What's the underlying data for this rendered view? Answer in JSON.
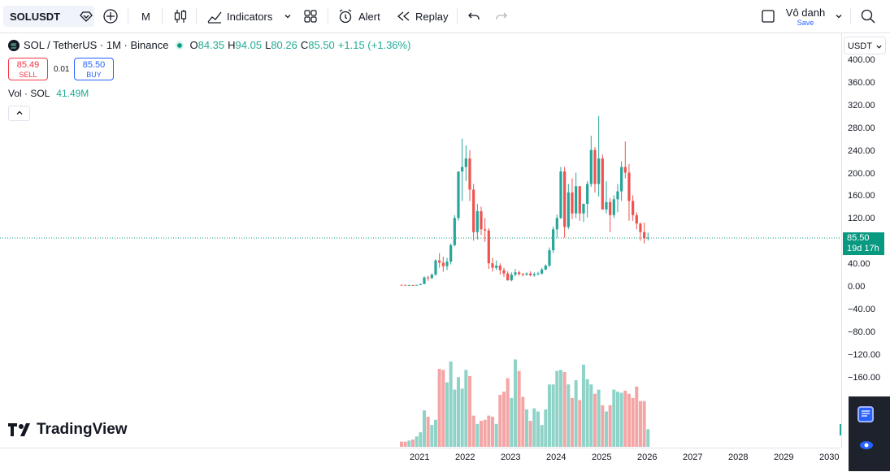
{
  "topbar": {
    "symbol": "SOLUSDT",
    "interval": "M",
    "indicators_label": "Indicators",
    "alert_label": "Alert",
    "replay_label": "Replay",
    "layout_name": "Vô danh",
    "save_label": "Save"
  },
  "legend": {
    "title": "SOL / TetherUS · 1M · Binance",
    "o_label": "O",
    "o_value": "84.35",
    "h_label": "H",
    "h_value": "94.05",
    "l_label": "L",
    "l_value": "80.26",
    "c_label": "C",
    "c_value": "85.50",
    "change": "+1.15 (+1.36%)"
  },
  "trade": {
    "sell_price": "85.49",
    "sell_label": "SELL",
    "spread": "0.01",
    "buy_price": "85.50",
    "buy_label": "BUY"
  },
  "volume": {
    "label": "Vol · SOL",
    "value": "41.49M"
  },
  "price_axis": {
    "currency": "USDT",
    "labels": [
      "400.00",
      "360.00",
      "320.00",
      "280.00",
      "240.00",
      "200.00",
      "160.00",
      "120.00",
      "80.00",
      "40.00",
      "0.00",
      "−40.00",
      "−80.00",
      "−120.00",
      "−160.00"
    ],
    "last_price": "85.50",
    "countdown": "19d 17h"
  },
  "time_axis": [
    "2021",
    "2022",
    "2023",
    "2024",
    "2025",
    "2026",
    "2027",
    "2028",
    "2029",
    "2030"
  ],
  "brand": "TradingView",
  "colors": {
    "up": "#26a69a",
    "down": "#ef5350",
    "vol_up": "#8fd3c8",
    "vol_down": "#f4a5a5",
    "last": "#089981"
  },
  "chart_data": {
    "type": "candlestick",
    "interval": "1M",
    "y_range": [
      -190,
      400
    ],
    "candles_ohlc": [
      [
        2.0,
        2.2,
        1.6,
        1.8
      ],
      [
        1.8,
        2.0,
        1.4,
        1.5
      ],
      [
        1.5,
        2.0,
        1.3,
        1.6
      ],
      [
        1.6,
        1.7,
        1.2,
        1.4
      ],
      [
        1.4,
        2.0,
        1.1,
        1.8
      ],
      [
        1.8,
        4.0,
        1.5,
        3.5
      ],
      [
        3.5,
        17,
        3.0,
        15
      ],
      [
        15,
        18,
        9,
        14
      ],
      [
        14,
        22,
        12,
        20
      ],
      [
        20,
        47,
        18,
        45
      ],
      [
        45,
        58,
        32,
        41
      ],
      [
        41,
        52,
        25,
        35
      ],
      [
        35,
        50,
        28,
        43
      ],
      [
        43,
        75,
        38,
        72
      ],
      [
        72,
        125,
        70,
        120
      ],
      [
        120,
        200,
        115,
        202
      ],
      [
        202,
        260,
        150,
        210
      ],
      [
        210,
        248,
        185,
        225
      ],
      [
        225,
        240,
        150,
        170
      ],
      [
        170,
        180,
        80,
        95
      ],
      [
        95,
        145,
        82,
        132
      ],
      [
        132,
        140,
        90,
        100
      ],
      [
        100,
        120,
        78,
        98
      ],
      [
        98,
        102,
        30,
        40
      ],
      [
        40,
        50,
        25,
        32
      ],
      [
        32,
        45,
        28,
        36
      ],
      [
        36,
        40,
        20,
        28
      ],
      [
        28,
        32,
        16,
        22
      ],
      [
        22,
        26,
        9,
        10
      ],
      [
        10,
        24,
        8,
        20
      ],
      [
        20,
        30,
        17,
        24
      ],
      [
        24,
        27,
        18,
        21
      ],
      [
        21,
        23,
        17,
        20
      ],
      [
        20,
        24,
        18,
        22
      ],
      [
        22,
        26,
        17,
        19
      ],
      [
        19,
        24,
        16,
        21
      ],
      [
        21,
        25,
        19,
        22
      ],
      [
        22,
        32,
        20,
        29
      ],
      [
        29,
        38,
        28,
        36
      ],
      [
        36,
        68,
        33,
        63
      ],
      [
        63,
        105,
        58,
        100
      ],
      [
        100,
        126,
        85,
        120
      ],
      [
        120,
        210,
        118,
        202
      ],
      [
        202,
        210,
        85,
        104
      ],
      [
        104,
        180,
        100,
        165
      ],
      [
        165,
        190,
        118,
        128
      ],
      [
        128,
        200,
        120,
        176
      ],
      [
        176,
        165,
        115,
        128
      ],
      [
        128,
        140,
        113,
        145
      ],
      [
        145,
        185,
        121,
        180
      ],
      [
        180,
        265,
        175,
        240
      ],
      [
        240,
        245,
        165,
        180
      ],
      [
        180,
        300,
        158,
        225
      ],
      [
        225,
        232,
        160,
        135
      ],
      [
        135,
        185,
        128,
        148
      ],
      [
        148,
        155,
        95,
        125
      ],
      [
        125,
        160,
        120,
        153
      ],
      [
        153,
        180,
        130,
        167
      ],
      [
        167,
        220,
        150,
        210
      ],
      [
        210,
        255,
        190,
        200
      ],
      [
        200,
        215,
        115,
        150
      ],
      [
        150,
        160,
        115,
        125
      ],
      [
        125,
        130,
        100,
        110
      ],
      [
        110,
        112,
        80,
        95
      ],
      [
        95,
        112,
        75,
        84
      ],
      [
        84.35,
        94.05,
        80.26,
        85.5
      ]
    ],
    "volume_relative": [
      0.05,
      0.05,
      0.06,
      0.07,
      0.1,
      0.14,
      0.35,
      0.29,
      0.21,
      0.26,
      0.75,
      0.74,
      0.62,
      0.82,
      0.55,
      0.67,
      0.56,
      0.74,
      0.68,
      0.3,
      0.22,
      0.25,
      0.26,
      0.3,
      0.29,
      0.22,
      0.5,
      0.53,
      0.66,
      0.47,
      0.84,
      0.73,
      0.48,
      0.36,
      0.25,
      0.37,
      0.34,
      0.21,
      0.36,
      0.6,
      0.6,
      0.73,
      0.74,
      0.72,
      0.6,
      0.47,
      0.64,
      0.45,
      0.79,
      0.65,
      0.6,
      0.51,
      0.55,
      0.4,
      0.34,
      0.4,
      0.55,
      0.53,
      0.52,
      0.54,
      0.51,
      0.47,
      0.58,
      0.44,
      0.44,
      0.17
    ]
  }
}
